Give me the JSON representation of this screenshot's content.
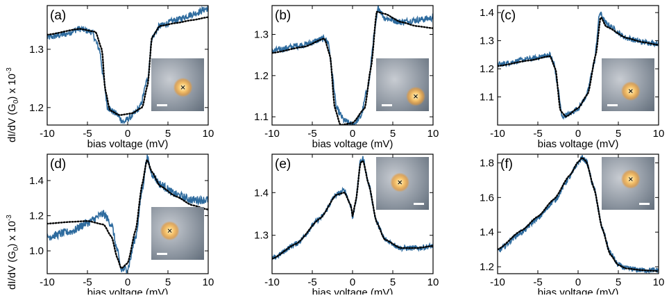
{
  "ylabel": "dI/dV (G",
  "ylabel_sub": "0",
  "ylabel_rest": ") x 10",
  "ylabel_exp": "-3",
  "chart_data": [
    {
      "id": "a",
      "label": "(a)",
      "type": "line",
      "xlabel": "bias voltage (mV)",
      "xlim": [
        -10,
        10
      ],
      "ylim": [
        1.17,
        1.375
      ],
      "xticks": [
        -10,
        -5,
        0,
        5,
        10
      ],
      "yticks": [
        1.2,
        1.3
      ],
      "model": {
        "base": [
          1.33,
          1.345,
          1.3
        ],
        "dip": 1.185,
        "dipCenter": -1.2,
        "gap": 2.8,
        "width": 0.5,
        "peak": 0.0,
        "peakPos": 0,
        "peakWidth": 1
      },
      "series": [
        {
          "name": "",
          "style": "measured",
          "color": "#2e6b9e",
          "noise": 0.012,
          "values": [
            [
              -10,
              1.32
            ],
            [
              -8,
              1.325
            ],
            [
              -6,
              1.335
            ],
            [
              -4.5,
              1.33
            ],
            [
              -3.5,
              1.3
            ],
            [
              -3,
              1.25
            ],
            [
              -2.5,
              1.2
            ],
            [
              -1.5,
              1.19
            ],
            [
              -0.5,
              1.175
            ],
            [
              0.5,
              1.185
            ],
            [
              1.5,
              1.2
            ],
            [
              2.5,
              1.25
            ],
            [
              3,
              1.32
            ],
            [
              4,
              1.34
            ],
            [
              6,
              1.35
            ],
            [
              8,
              1.36
            ],
            [
              10,
              1.37
            ]
          ]
        },
        {
          "name": "",
          "style": "fit",
          "color": "#000000",
          "noise": 0,
          "values": [
            [
              -10,
              1.325
            ],
            [
              -6,
              1.335
            ],
            [
              -4,
              1.33
            ],
            [
              -3.2,
              1.3
            ],
            [
              -2.8,
              1.23
            ],
            [
              -2.2,
              1.195
            ],
            [
              -1,
              1.187
            ],
            [
              0.5,
              1.19
            ],
            [
              1.8,
              1.2
            ],
            [
              2.5,
              1.24
            ],
            [
              3,
              1.32
            ],
            [
              4,
              1.34
            ],
            [
              6,
              1.345
            ],
            [
              8,
              1.35
            ],
            [
              10,
              1.355
            ]
          ]
        }
      ],
      "inset": {
        "corner": "bottom-right",
        "spot": [
          0.6,
          0.55
        ]
      }
    },
    {
      "id": "b",
      "label": "(b)",
      "type": "line",
      "xlabel": "bias voltage (mV)",
      "xlim": [
        -10,
        10
      ],
      "ylim": [
        1.08,
        1.37
      ],
      "xticks": [
        -10,
        -5,
        0,
        5,
        10
      ],
      "yticks": [
        1.1,
        1.2,
        1.3
      ],
      "series": [
        {
          "name": "",
          "style": "measured",
          "color": "#2e6b9e",
          "noise": 0.012,
          "values": [
            [
              -10,
              1.26
            ],
            [
              -6,
              1.275
            ],
            [
              -3.5,
              1.29
            ],
            [
              -3,
              1.28
            ],
            [
              -2.5,
              1.2
            ],
            [
              -2,
              1.12
            ],
            [
              -1,
              1.09
            ],
            [
              0,
              1.08
            ],
            [
              1,
              1.1
            ],
            [
              2,
              1.18
            ],
            [
              2.7,
              1.3
            ],
            [
              3.2,
              1.365
            ],
            [
              4,
              1.34
            ],
            [
              6,
              1.33
            ],
            [
              8,
              1.335
            ],
            [
              10,
              1.34
            ]
          ]
        },
        {
          "name": "",
          "style": "fit",
          "color": "#000000",
          "noise": 0,
          "values": [
            [
              -10,
              1.255
            ],
            [
              -6,
              1.27
            ],
            [
              -3.5,
              1.29
            ],
            [
              -2.8,
              1.25
            ],
            [
              -2.2,
              1.12
            ],
            [
              -1.5,
              1.08
            ],
            [
              0,
              1.085
            ],
            [
              1.5,
              1.12
            ],
            [
              2.3,
              1.22
            ],
            [
              3,
              1.355
            ],
            [
              4,
              1.35
            ],
            [
              6,
              1.33
            ],
            [
              8,
              1.32
            ],
            [
              10,
              1.315
            ]
          ]
        }
      ],
      "inset": {
        "corner": "bottom-right",
        "spot": [
          0.75,
          0.72
        ]
      }
    },
    {
      "id": "c",
      "label": "(c)",
      "type": "line",
      "xlabel": "bias voltage (mV)",
      "xlim": [
        -10,
        10
      ],
      "ylim": [
        1.0,
        1.425
      ],
      "xticks": [
        -10,
        -5,
        0,
        5,
        10
      ],
      "yticks": [
        1.1,
        1.2,
        1.3,
        1.4
      ],
      "series": [
        {
          "name": "",
          "style": "measured",
          "color": "#2e6b9e",
          "noise": 0.01,
          "values": [
            [
              -10,
              1.215
            ],
            [
              -6,
              1.235
            ],
            [
              -3.5,
              1.25
            ],
            [
              -3,
              1.22
            ],
            [
              -2.5,
              1.13
            ],
            [
              -2,
              1.03
            ],
            [
              -1,
              1.04
            ],
            [
              0,
              1.06
            ],
            [
              1,
              1.1
            ],
            [
              2,
              1.22
            ],
            [
              2.7,
              1.4
            ],
            [
              3.5,
              1.36
            ],
            [
              6,
              1.31
            ],
            [
              8,
              1.295
            ],
            [
              10,
              1.29
            ]
          ]
        },
        {
          "name": "",
          "style": "fit",
          "color": "#000000",
          "noise": 0,
          "values": [
            [
              -10,
              1.21
            ],
            [
              -6,
              1.23
            ],
            [
              -3.5,
              1.245
            ],
            [
              -2.8,
              1.2
            ],
            [
              -2.2,
              1.05
            ],
            [
              -1.5,
              1.03
            ],
            [
              0,
              1.06
            ],
            [
              1.2,
              1.11
            ],
            [
              2.2,
              1.25
            ],
            [
              2.8,
              1.385
            ],
            [
              3.5,
              1.35
            ],
            [
              6,
              1.31
            ],
            [
              8,
              1.295
            ],
            [
              10,
              1.285
            ]
          ]
        }
      ],
      "inset": {
        "corner": "bottom-right",
        "spot": [
          0.55,
          0.62
        ]
      }
    },
    {
      "id": "d",
      "label": "(d)",
      "type": "line",
      "xlabel": "bias voltage (mV)",
      "xlim": [
        -10,
        10
      ],
      "ylim": [
        0.87,
        1.55
      ],
      "xticks": [
        -10,
        -5,
        0,
        5,
        10
      ],
      "yticks": [
        1.0,
        1.2,
        1.4
      ],
      "series": [
        {
          "name": "",
          "style": "measured",
          "color": "#2e6b9e",
          "noise": 0.015,
          "values": [
            [
              -10,
              1.08
            ],
            [
              -7,
              1.11
            ],
            [
              -5,
              1.16
            ],
            [
              -3,
              1.21
            ],
            [
              -2,
              1.15
            ],
            [
              -1.3,
              1.0
            ],
            [
              -0.8,
              0.89
            ],
            [
              0,
              0.9
            ],
            [
              1,
              1.08
            ],
            [
              1.8,
              1.35
            ],
            [
              2.4,
              1.53
            ],
            [
              3,
              1.44
            ],
            [
              4,
              1.38
            ],
            [
              6,
              1.32
            ],
            [
              8,
              1.29
            ],
            [
              10,
              1.29
            ]
          ]
        },
        {
          "name": "",
          "style": "fit",
          "color": "#000000",
          "noise": 0,
          "values": [
            [
              -10,
              1.155
            ],
            [
              -7,
              1.165
            ],
            [
              -5,
              1.17
            ],
            [
              -3,
              1.15
            ],
            [
              -2,
              1.08
            ],
            [
              -1.3,
              0.96
            ],
            [
              -0.8,
              0.9
            ],
            [
              0,
              0.93
            ],
            [
              1,
              1.12
            ],
            [
              1.8,
              1.38
            ],
            [
              2.4,
              1.52
            ],
            [
              3,
              1.45
            ],
            [
              4,
              1.37
            ],
            [
              6,
              1.31
            ],
            [
              8,
              1.26
            ],
            [
              10,
              1.235
            ]
          ]
        }
      ],
      "inset": {
        "corner": "bottom-right",
        "spot": [
          0.35,
          0.45
        ]
      }
    },
    {
      "id": "e",
      "label": "(e)",
      "type": "line",
      "xlabel": "bias voltage (mV)",
      "xlim": [
        -10,
        10
      ],
      "ylim": [
        1.21,
        1.49
      ],
      "xticks": [
        -10,
        -5,
        0,
        5,
        10
      ],
      "yticks": [
        1.3,
        1.4
      ],
      "series": [
        {
          "name": "",
          "style": "measured",
          "color": "#2e6b9e",
          "noise": 0.01,
          "values": [
            [
              -10,
              1.245
            ],
            [
              -7,
              1.28
            ],
            [
              -4,
              1.34
            ],
            [
              -2,
              1.395
            ],
            [
              -1,
              1.405
            ],
            [
              -0.2,
              1.37
            ],
            [
              0,
              1.34
            ],
            [
              0.4,
              1.38
            ],
            [
              1,
              1.475
            ],
            [
              1.3,
              1.48
            ],
            [
              2,
              1.42
            ],
            [
              3,
              1.33
            ],
            [
              4,
              1.29
            ],
            [
              6,
              1.27
            ],
            [
              8,
              1.27
            ],
            [
              10,
              1.275
            ]
          ]
        },
        {
          "name": "",
          "style": "fit",
          "color": "#000000",
          "noise": 0,
          "values": [
            [
              -10,
              1.245
            ],
            [
              -7,
              1.28
            ],
            [
              -4,
              1.34
            ],
            [
              -2,
              1.395
            ],
            [
              -1,
              1.4
            ],
            [
              -0.2,
              1.37
            ],
            [
              0,
              1.345
            ],
            [
              0.4,
              1.38
            ],
            [
              1,
              1.47
            ],
            [
              1.3,
              1.475
            ],
            [
              2,
              1.42
            ],
            [
              3,
              1.33
            ],
            [
              4,
              1.29
            ],
            [
              6,
              1.27
            ],
            [
              8,
              1.27
            ],
            [
              10,
              1.275
            ]
          ]
        }
      ],
      "inset": {
        "corner": "top-right",
        "spot": [
          0.45,
          0.48
        ]
      }
    },
    {
      "id": "f",
      "label": "(f)",
      "type": "line",
      "xlabel": "bias voltage (mV)",
      "xlim": [
        -10,
        10
      ],
      "ylim": [
        1.16,
        1.85
      ],
      "xticks": [
        -10,
        -5,
        0,
        5,
        10
      ],
      "yticks": [
        1.2,
        1.4,
        1.6,
        1.8
      ],
      "series": [
        {
          "name": "",
          "style": "measured",
          "color": "#2e6b9e",
          "noise": 0.01,
          "values": [
            [
              -10,
              1.29
            ],
            [
              -7,
              1.4
            ],
            [
              -5,
              1.48
            ],
            [
              -3,
              1.58
            ],
            [
              -1,
              1.72
            ],
            [
              0,
              1.8
            ],
            [
              0.5,
              1.83
            ],
            [
              1,
              1.81
            ],
            [
              2,
              1.65
            ],
            [
              3,
              1.42
            ],
            [
              4,
              1.28
            ],
            [
              5,
              1.21
            ],
            [
              6,
              1.19
            ],
            [
              8,
              1.18
            ],
            [
              10,
              1.18
            ]
          ]
        },
        {
          "name": "",
          "style": "fit",
          "color": "#000000",
          "noise": 0,
          "values": [
            [
              -10,
              1.3
            ],
            [
              -7,
              1.41
            ],
            [
              -5,
              1.49
            ],
            [
              -3,
              1.59
            ],
            [
              -1,
              1.73
            ],
            [
              0,
              1.805
            ],
            [
              0.5,
              1.83
            ],
            [
              1,
              1.81
            ],
            [
              2,
              1.65
            ],
            [
              3,
              1.42
            ],
            [
              4,
              1.27
            ],
            [
              5,
              1.21
            ],
            [
              6,
              1.19
            ],
            [
              8,
              1.18
            ],
            [
              10,
              1.175
            ]
          ]
        }
      ],
      "inset": {
        "corner": "top-right",
        "spot": [
          0.55,
          0.42
        ]
      }
    }
  ]
}
